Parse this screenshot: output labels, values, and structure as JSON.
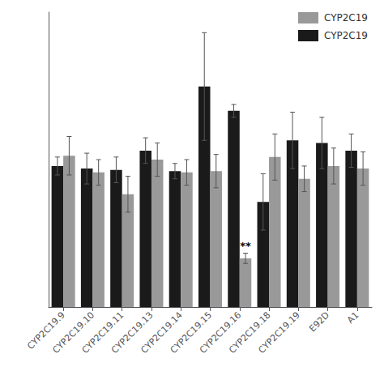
{
  "chart_data": {
    "type": "bar",
    "categories": [
      "CYP2C19.9",
      "CYP2C19.10",
      "CYP2C19.11",
      "CYP2C19.13",
      "CYP2C19.14",
      "CYP2C19.15",
      "CYP2C19.16",
      "CYP2C19.18",
      "CYP2C19.19",
      "E92D",
      "A1"
    ],
    "series": [
      {
        "name": "CYP2C19",
        "color": "#1a1a1a",
        "values": [
          1.1,
          1.08,
          1.07,
          1.22,
          1.06,
          1.72,
          1.53,
          0.82,
          1.3,
          1.28,
          1.22
        ],
        "errors": [
          0.07,
          0.12,
          0.1,
          0.1,
          0.06,
          0.42,
          0.05,
          0.22,
          0.22,
          0.2,
          0.13
        ]
      },
      {
        "name": "CYP2C19",
        "color": "#999999",
        "values": [
          1.18,
          1.05,
          0.88,
          1.15,
          1.05,
          1.06,
          0.38,
          1.17,
          1.0,
          1.1,
          1.08
        ],
        "errors": [
          0.15,
          0.1,
          0.14,
          0.13,
          0.1,
          0.13,
          0.04,
          0.18,
          0.1,
          0.14,
          0.13
        ],
        "annotations": [
          {
            "category": "CYP2C19.16",
            "text": "**"
          }
        ]
      }
    ],
    "ylim": [
      0,
      2.3
    ],
    "grid": false,
    "legend": "upper right",
    "tick_labels": "x"
  }
}
